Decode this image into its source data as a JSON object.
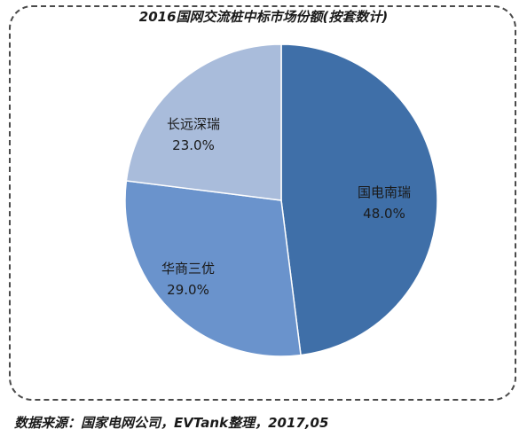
{
  "title": "2016国网交流桩中标市场份额(按套数计)",
  "source": "数据来源：国家电网公司，EVTank整理，2017,05",
  "chart_data": {
    "type": "pie",
    "title": "2016国网交流桩中标市场份额(按套数计)",
    "slices": [
      {
        "label": "国电南瑞",
        "value": 48.0,
        "value_label": "48.0%",
        "color": "#3f6fa8"
      },
      {
        "label": "华商三优",
        "value": 29.0,
        "value_label": "29.0%",
        "color": "#6a93cc"
      },
      {
        "label": "长远深瑞",
        "value": 23.0,
        "value_label": "23.0%",
        "color": "#a9bcdb"
      }
    ],
    "start_angle": "12 o'clock",
    "direction": "clockwise",
    "legend": "none"
  }
}
